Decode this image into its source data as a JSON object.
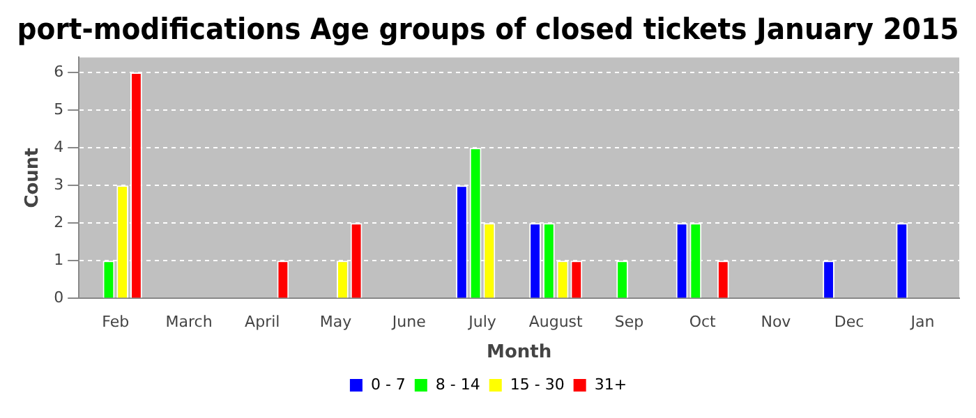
{
  "chart_data": {
    "type": "bar",
    "title": "port-modifications Age groups of closed tickets January 2015",
    "xlabel": "Month",
    "ylabel": "Count",
    "categories": [
      "Feb",
      "March",
      "April",
      "May",
      "June",
      "July",
      "August",
      "Sep",
      "Oct",
      "Nov",
      "Dec",
      "Jan"
    ],
    "series": [
      {
        "name": "0 - 7",
        "color": "#0000ff",
        "values": [
          0,
          0,
          0,
          0,
          0,
          3,
          2,
          0,
          2,
          0,
          1,
          2
        ]
      },
      {
        "name": "8 - 14",
        "color": "#00ff00",
        "values": [
          1,
          0,
          0,
          0,
          0,
          4,
          2,
          1,
          2,
          0,
          0,
          0
        ]
      },
      {
        "name": "15 - 30",
        "color": "#ffff00",
        "values": [
          3,
          0,
          0,
          1,
          0,
          2,
          1,
          0,
          0,
          0,
          0,
          0
        ]
      },
      {
        "name": "31+",
        "color": "#ff0000",
        "values": [
          6,
          0,
          1,
          2,
          0,
          0,
          1,
          0,
          1,
          0,
          0,
          0
        ]
      }
    ],
    "ylim": [
      0,
      6.4
    ],
    "yticks": [
      0,
      1,
      2,
      3,
      4,
      5,
      6
    ],
    "grid": "y",
    "legend": "bottom"
  }
}
